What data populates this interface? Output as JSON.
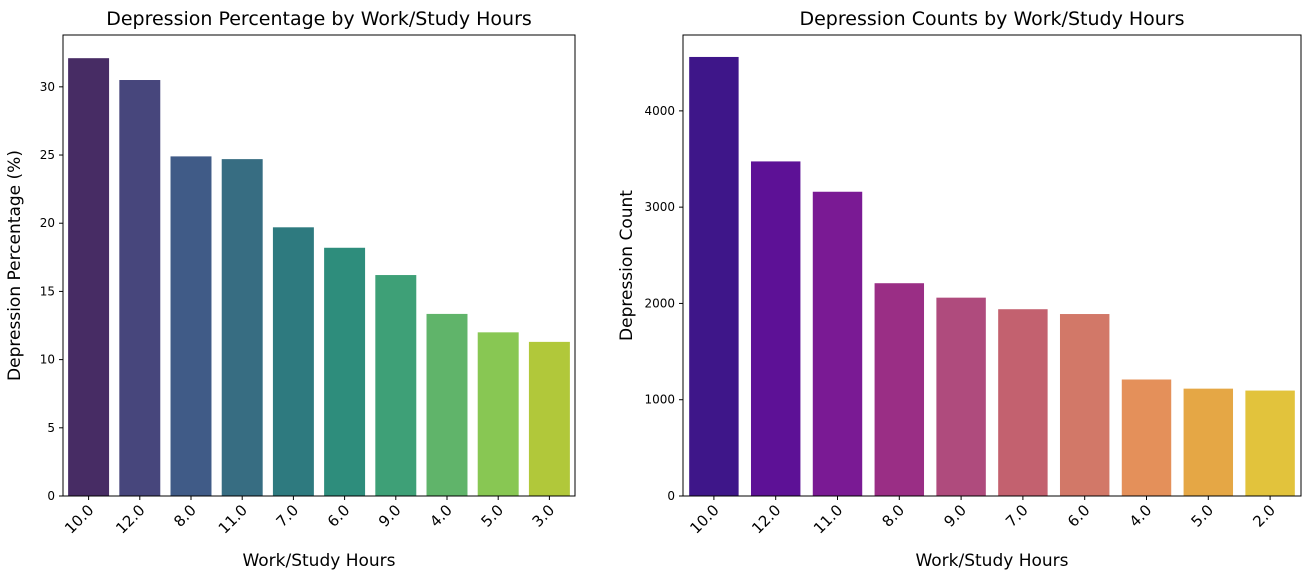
{
  "chart_data": [
    {
      "type": "bar",
      "title": "Depression Percentage by Work/Study Hours",
      "xlabel": "Work/Study Hours",
      "ylabel": "Depression Percentage (%)",
      "categories": [
        "10.0",
        "12.0",
        "8.0",
        "11.0",
        "7.0",
        "6.0",
        "9.0",
        "4.0",
        "5.0",
        "3.0"
      ],
      "values": [
        32.1,
        30.5,
        24.9,
        24.7,
        19.7,
        18.2,
        16.2,
        13.35,
        12.0,
        11.3
      ],
      "ylim": [
        0,
        33.8
      ],
      "yticks": [
        "0",
        "5",
        "10",
        "15",
        "20",
        "25",
        "30"
      ],
      "grid": false,
      "legend": "none",
      "palette": "viridis",
      "colors": [
        "#472c64",
        "#47467c",
        "#405b87",
        "#376d82",
        "#2e7a7f",
        "#2e8d7c",
        "#3ea077",
        "#60b46a",
        "#88c753",
        "#b1c83a"
      ]
    },
    {
      "type": "bar",
      "title": "Depression Counts by Work/Study Hours",
      "xlabel": "Work/Study Hours",
      "ylabel": "Depression Count",
      "categories": [
        "10.0",
        "12.0",
        "11.0",
        "8.0",
        "9.0",
        "7.0",
        "6.0",
        "4.0",
        "5.0",
        "2.0"
      ],
      "values": [
        4560,
        3475,
        3160,
        2210,
        2060,
        1940,
        1890,
        1210,
        1115,
        1095
      ],
      "ylim": [
        0,
        4788
      ],
      "yticks": [
        "0",
        "1000",
        "2000",
        "3000",
        "4000"
      ],
      "grid": false,
      "legend": "none",
      "palette": "plasma",
      "colors": [
        "#3e1689",
        "#5d1196",
        "#7a1a94",
        "#9a2e85",
        "#af4b7d",
        "#c3616f",
        "#d27868",
        "#e4905a",
        "#e5a745",
        "#e2c33c"
      ]
    }
  ]
}
